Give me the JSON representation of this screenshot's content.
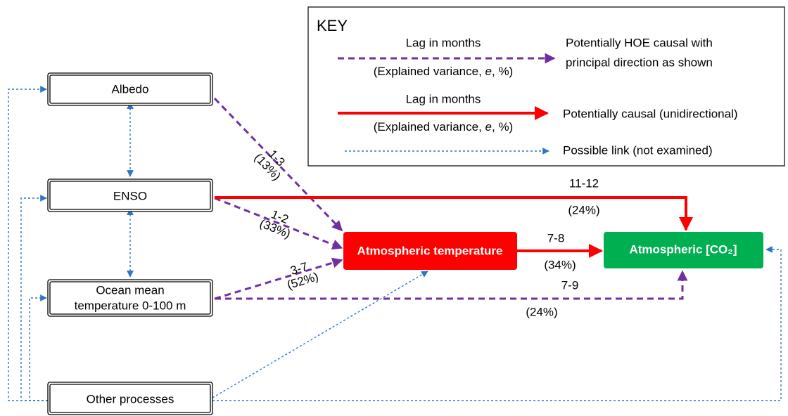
{
  "key": {
    "title": "KEY",
    "items": [
      {
        "lag": "Lag in months",
        "variance": [
          "(Explained variance, ",
          "e",
          ", %)"
        ],
        "description": [
          "Potentially HOE causal with",
          "principal direction as shown"
        ]
      },
      {
        "lag": "Lag in months",
        "variance": [
          "(Explained variance, ",
          "e",
          ", %)"
        ],
        "description": [
          "Potentially causal (unidirectional)"
        ]
      },
      {
        "description": [
          "Possible link (not examined)"
        ]
      }
    ]
  },
  "nodes": [
    {
      "lines": [
        "Albedo"
      ]
    },
    {
      "lines": [
        "ENSO"
      ]
    },
    {
      "lines": [
        "Ocean mean",
        "temperature 0-100 m"
      ]
    },
    {
      "lines": [
        "Other  processes"
      ]
    },
    {
      "lines": [
        "Atmospheric temperature"
      ]
    },
    {
      "lines": [
        "Atmospheric [CO₂]"
      ]
    }
  ],
  "edges": [
    {
      "lag": "1-3",
      "variance": "(13%)"
    },
    {
      "lag": "1-2",
      "variance": "(33%)"
    },
    {
      "lag": "3-7",
      "variance": "(52%)"
    },
    {
      "lag": "11-12",
      "variance": "(24%)"
    },
    {
      "lag": "7-8",
      "variance": "(34%)"
    },
    {
      "lag": "7-9",
      "variance": "(24%)"
    }
  ]
}
